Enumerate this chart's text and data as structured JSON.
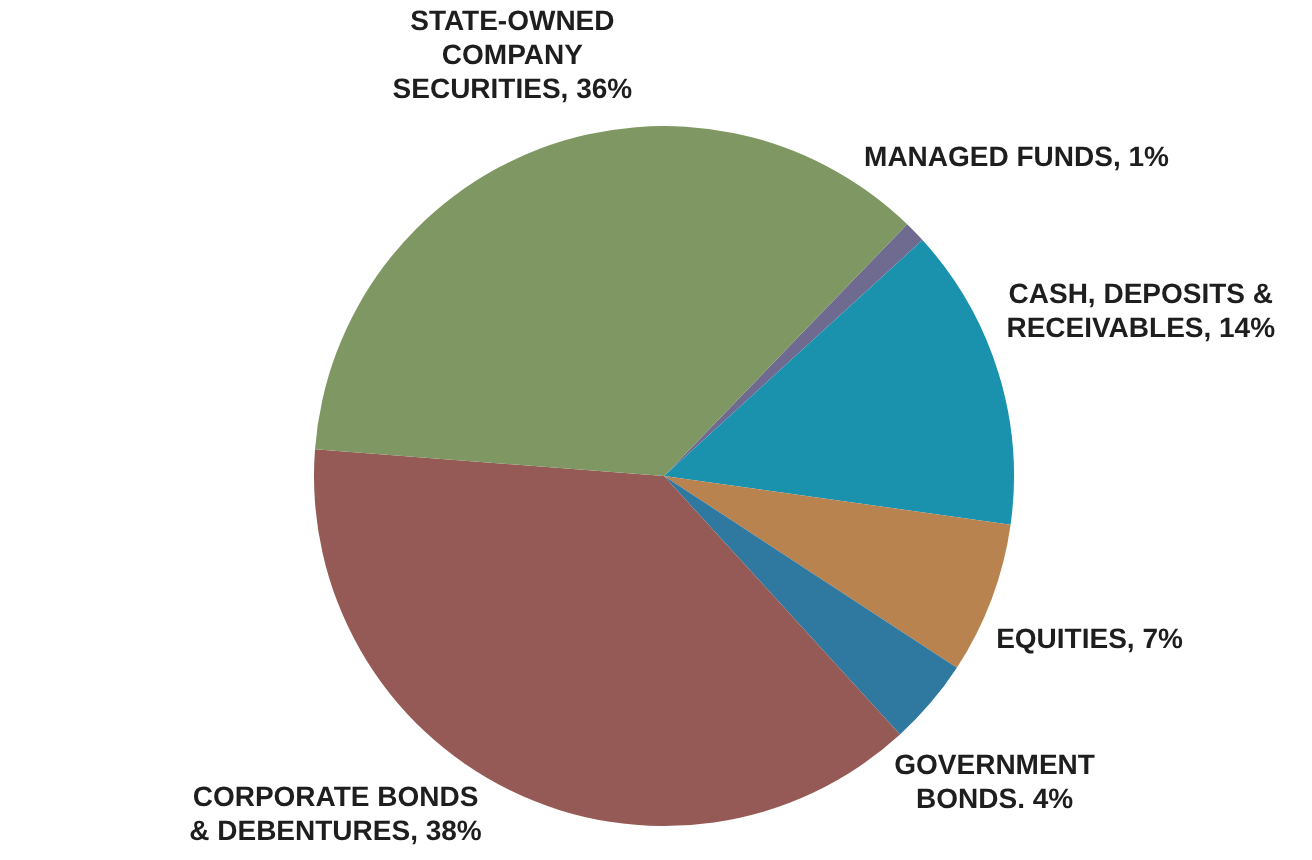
{
  "chart_data": {
    "type": "pie",
    "categories": [
      "MANAGED FUNDS",
      "CASH, DEPOSITS & RECEIVABLES",
      "EQUITIES",
      "GOVERNMENT BONDS.",
      "CORPORATE BONDS & DEBENTURES",
      "STATE-OWNED COMPANY SECURITIES"
    ],
    "values": [
      1,
      14,
      7,
      4,
      38,
      36
    ],
    "value_labels": [
      "1%",
      "14%",
      "7%",
      "4%",
      "38%",
      "36%"
    ],
    "colors": [
      "#6f6a8f",
      "#1a92ad",
      "#b8834f",
      "#2f78a0",
      "#955a55",
      "#7f9762"
    ]
  }
}
